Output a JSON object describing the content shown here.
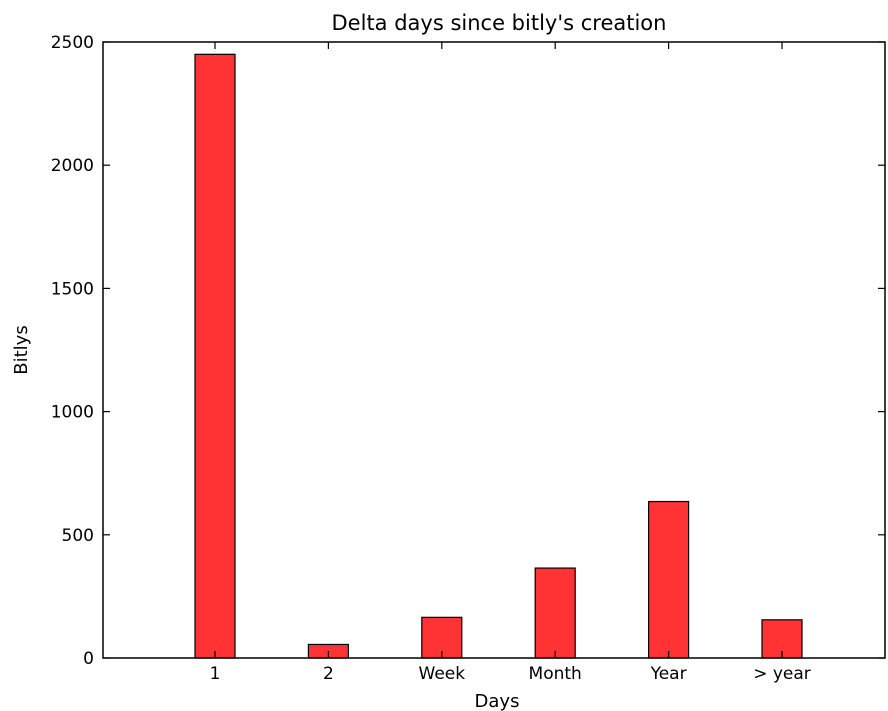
{
  "chart_data": {
    "type": "bar",
    "title": "Delta days since bitly's creation",
    "xlabel": "Days",
    "ylabel": "Bitlys",
    "categories": [
      "1",
      "2",
      "Week",
      "Month",
      "Year",
      "> year"
    ],
    "values": [
      2450,
      55,
      165,
      365,
      635,
      155
    ],
    "ylim": [
      0,
      2500
    ],
    "yticks": [
      0,
      500,
      1000,
      1500,
      2000,
      2500
    ],
    "grid": false,
    "bar_color": "#ff3333",
    "edge_color": "#000000"
  }
}
